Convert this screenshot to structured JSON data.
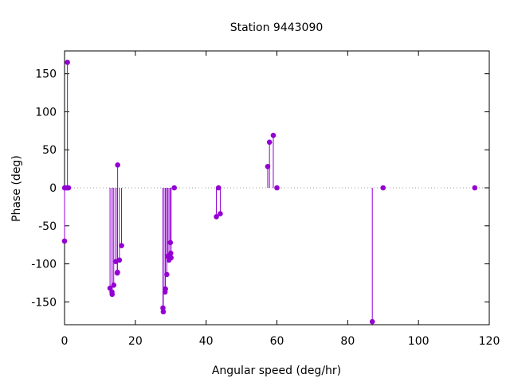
{
  "chart_data": {
    "type": "scatter",
    "style": "impulses-with-points",
    "title": "Station 9443090",
    "xlabel": "Angular speed (deg/hr)",
    "ylabel": "Phase (deg)",
    "xlim": [
      0,
      120
    ],
    "ylim": [
      -180,
      180
    ],
    "xticks": [
      0,
      20,
      40,
      60,
      80,
      100,
      120
    ],
    "yticks": [
      -150,
      -100,
      -50,
      0,
      50,
      100,
      150
    ],
    "grid": false,
    "zero_line": true,
    "color": "#9400d3",
    "points": [
      {
        "x": 0.0,
        "y": -70
      },
      {
        "x": 0.04,
        "y": 0
      },
      {
        "x": 0.08,
        "y": 0
      },
      {
        "x": 0.5,
        "y": 0
      },
      {
        "x": 0.8,
        "y": 0
      },
      {
        "x": 0.82,
        "y": 165
      },
      {
        "x": 1.1,
        "y": 0
      },
      {
        "x": 12.85,
        "y": -132
      },
      {
        "x": 13.4,
        "y": -137
      },
      {
        "x": 13.45,
        "y": -140
      },
      {
        "x": 13.9,
        "y": -128
      },
      {
        "x": 14.45,
        "y": -97
      },
      {
        "x": 14.9,
        "y": -112
      },
      {
        "x": 14.96,
        "y": -111
      },
      {
        "x": 15.0,
        "y": 30
      },
      {
        "x": 15.5,
        "y": -95
      },
      {
        "x": 16.1,
        "y": -76
      },
      {
        "x": 27.8,
        "y": -158
      },
      {
        "x": 27.9,
        "y": -163
      },
      {
        "x": 28.4,
        "y": -137
      },
      {
        "x": 28.5,
        "y": -133
      },
      {
        "x": 28.9,
        "y": -114
      },
      {
        "x": 29.1,
        "y": -90
      },
      {
        "x": 29.5,
        "y": -95
      },
      {
        "x": 29.9,
        "y": -72
      },
      {
        "x": 30.0,
        "y": -86
      },
      {
        "x": 30.1,
        "y": -92
      },
      {
        "x": 31.0,
        "y": 0
      },
      {
        "x": 42.9,
        "y": -38
      },
      {
        "x": 43.5,
        "y": 0
      },
      {
        "x": 44.0,
        "y": -34
      },
      {
        "x": 57.4,
        "y": 28
      },
      {
        "x": 57.9,
        "y": 60
      },
      {
        "x": 58.98,
        "y": 69
      },
      {
        "x": 60.0,
        "y": 0
      },
      {
        "x": 86.95,
        "y": -176
      },
      {
        "x": 90.0,
        "y": 0
      },
      {
        "x": 115.9,
        "y": 0
      }
    ]
  }
}
